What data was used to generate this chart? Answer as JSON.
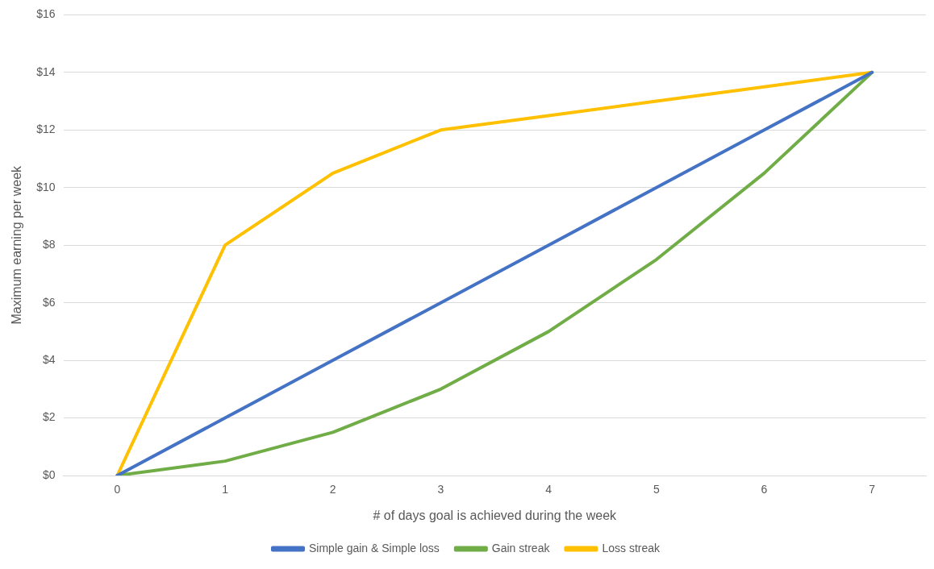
{
  "chart_data": {
    "type": "line",
    "xlabel": "# of days goal is achieved during the week",
    "ylabel": "Maximum earning per week",
    "categories": [
      "0",
      "1",
      "2",
      "3",
      "4",
      "5",
      "6",
      "7"
    ],
    "series": [
      {
        "name": "Simple gain & Simple loss",
        "color": "#4472c4",
        "values": [
          0,
          2,
          4,
          6,
          8,
          10,
          12,
          14
        ]
      },
      {
        "name": "Gain streak",
        "color": "#70ad47",
        "values": [
          0,
          0.5,
          1.5,
          3,
          5,
          7.5,
          10.5,
          14
        ]
      },
      {
        "name": "Loss streak",
        "color": "#ffc000",
        "values": [
          0,
          8,
          10.5,
          12,
          12.5,
          13,
          13.5,
          14
        ]
      }
    ],
    "ylim": [
      0,
      16
    ],
    "yticks": [
      {
        "value": 0,
        "label": "$0"
      },
      {
        "value": 2,
        "label": "$2"
      },
      {
        "value": 4,
        "label": "$4"
      },
      {
        "value": 6,
        "label": "$6"
      },
      {
        "value": 8,
        "label": "$8"
      },
      {
        "value": 10,
        "label": "$10"
      },
      {
        "value": 12,
        "label": "$12"
      },
      {
        "value": 14,
        "label": "$14"
      },
      {
        "value": 16,
        "label": "$16"
      }
    ],
    "grid": "y",
    "legend": "bottom",
    "marker": "none",
    "line_style": "solid"
  }
}
